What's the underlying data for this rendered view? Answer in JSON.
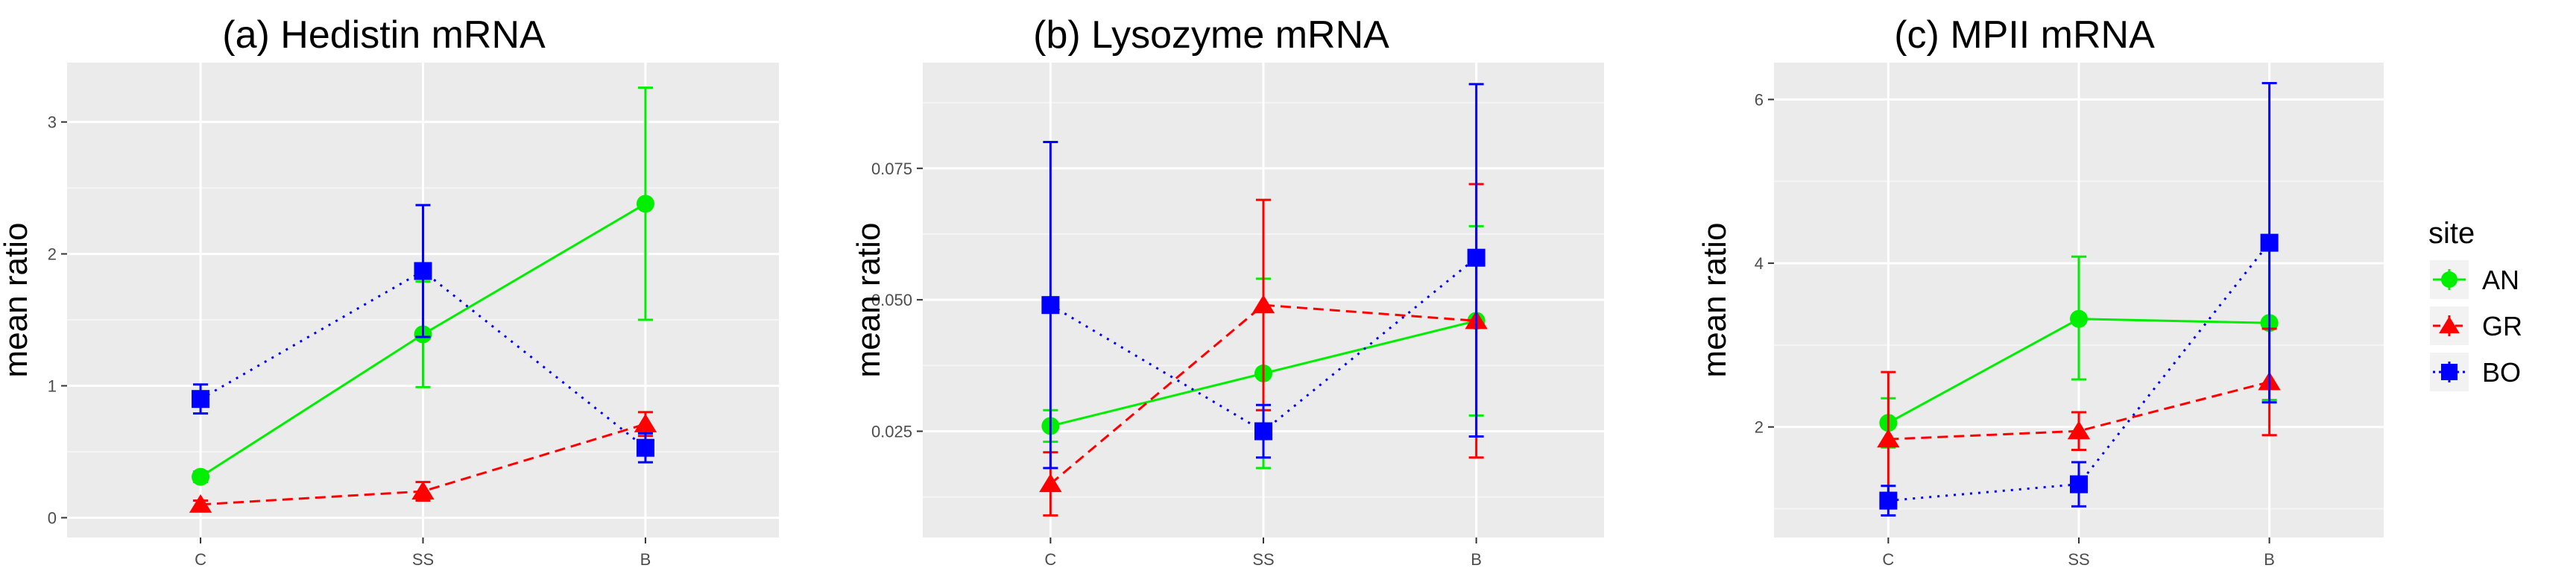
{
  "colors": {
    "panel_background": "#ebebeb",
    "major_grid": "#ffffff",
    "minor_grid": "#f5f5f5",
    "tick": "#333333",
    "AN": "#00ee00",
    "GR": "#ff0000",
    "BO": "#0000ff"
  },
  "legend": {
    "title": "site",
    "entries": [
      {
        "label": "AN",
        "color": "#00ee00",
        "shape": "circle",
        "line": "solid"
      },
      {
        "label": "GR",
        "color": "#ff0000",
        "shape": "triangle",
        "line": "dashed"
      },
      {
        "label": "BO",
        "color": "#0000ff",
        "shape": "square",
        "line": "dotted"
      }
    ]
  },
  "chart_data": [
    {
      "type": "line",
      "title": "(a) Hedistin mRNA",
      "xlabel": "",
      "ylabel": "mean ratio",
      "categories": [
        "C",
        "SS",
        "B"
      ],
      "ylim": [
        -0.15,
        3.45
      ],
      "yticks": [
        0,
        1,
        2,
        3
      ],
      "ytick_labels": [
        "0",
        "1",
        "2",
        "3"
      ],
      "series": [
        {
          "name": "AN",
          "values": [
            0.31,
            1.39,
            2.38
          ],
          "lower": [
            0.27,
            0.99,
            1.5
          ],
          "upper": [
            0.35,
            1.79,
            3.26
          ]
        },
        {
          "name": "GR",
          "values": [
            0.1,
            0.2,
            0.71
          ],
          "lower": [
            0.07,
            0.13,
            0.62
          ],
          "upper": [
            0.13,
            0.27,
            0.8
          ]
        },
        {
          "name": "BO",
          "values": [
            0.9,
            1.87,
            0.53
          ],
          "lower": [
            0.79,
            1.37,
            0.42
          ],
          "upper": [
            1.01,
            2.37,
            0.64
          ]
        }
      ]
    },
    {
      "type": "line",
      "title": "(b) Lysozyme mRNA",
      "xlabel": "",
      "ylabel": "mean ratio",
      "categories": [
        "C",
        "SS",
        "B"
      ],
      "ylim": [
        0.0048,
        0.0951
      ],
      "yticks": [
        0.025,
        0.05,
        0.075
      ],
      "ytick_labels": [
        "0.025",
        "0.050",
        "0.075"
      ],
      "series": [
        {
          "name": "AN",
          "values": [
            0.026,
            0.036,
            0.046
          ],
          "lower": [
            0.023,
            0.018,
            0.028
          ],
          "upper": [
            0.029,
            0.054,
            0.064
          ]
        },
        {
          "name": "GR",
          "values": [
            0.015,
            0.049,
            0.046
          ],
          "lower": [
            0.009,
            0.029,
            0.02
          ],
          "upper": [
            0.021,
            0.069,
            0.072
          ]
        },
        {
          "name": "BO",
          "values": [
            0.049,
            0.025,
            0.058
          ],
          "lower": [
            0.018,
            0.02,
            0.024
          ],
          "upper": [
            0.08,
            0.03,
            0.091
          ]
        }
      ]
    },
    {
      "type": "line",
      "title": "(c) MPII mRNA",
      "xlabel": "",
      "ylabel": "mean ratio",
      "categories": [
        "C",
        "SS",
        "B"
      ],
      "ylim": [
        0.65,
        6.45
      ],
      "yticks": [
        2,
        4,
        6
      ],
      "ytick_labels": [
        "2",
        "4",
        "6"
      ],
      "series": [
        {
          "name": "AN",
          "values": [
            2.05,
            3.32,
            3.27
          ],
          "lower": [
            1.75,
            2.58,
            2.33
          ],
          "upper": [
            2.35,
            4.08,
            4.21
          ]
        },
        {
          "name": "GR",
          "values": [
            1.85,
            1.95,
            2.55
          ],
          "lower": [
            1.03,
            1.72,
            1.9
          ],
          "upper": [
            2.67,
            2.18,
            3.2
          ]
        },
        {
          "name": "BO",
          "values": [
            1.1,
            1.3,
            4.25
          ],
          "lower": [
            0.92,
            1.03,
            2.3
          ],
          "upper": [
            1.28,
            1.57,
            6.2
          ]
        }
      ]
    }
  ]
}
